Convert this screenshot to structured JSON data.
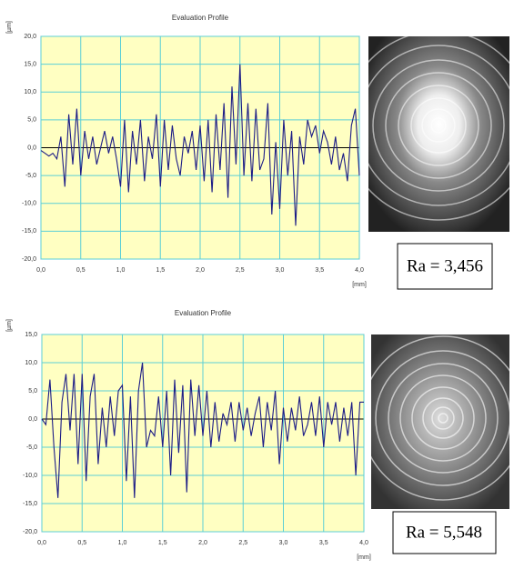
{
  "chart_data": [
    {
      "type": "line",
      "title": "Evaluation Profile",
      "ylabel": "[µm]",
      "xlabel": "[mm]",
      "annotation": "Ra = 3,456",
      "color": "#1c1c86",
      "grid": true,
      "x": [
        0,
        0.05,
        0.1,
        0.15,
        0.2,
        0.25,
        0.3,
        0.35,
        0.4,
        0.45,
        0.5,
        0.55,
        0.6,
        0.65,
        0.7,
        0.75,
        0.8,
        0.85,
        0.9,
        0.95,
        1,
        1.05,
        1.1,
        1.15,
        1.2,
        1.25,
        1.3,
        1.35,
        1.4,
        1.45,
        1.5,
        1.55,
        1.6,
        1.65,
        1.7,
        1.75,
        1.8,
        1.85,
        1.9,
        1.95,
        2,
        2.05,
        2.1,
        2.15,
        2.2,
        2.25,
        2.3,
        2.35,
        2.4,
        2.45,
        2.5,
        2.55,
        2.6,
        2.65,
        2.7,
        2.75,
        2.8,
        2.85,
        2.9,
        2.95,
        3,
        3.05,
        3.1,
        3.15,
        3.2,
        3.25,
        3.3,
        3.35,
        3.4,
        3.45,
        3.5,
        3.55,
        3.6,
        3.65,
        3.7,
        3.75,
        3.8,
        3.85,
        3.9,
        3.95,
        4
      ],
      "values": [
        -0.5,
        -1,
        -1.5,
        -1,
        -2,
        2,
        -7,
        6,
        -3,
        7,
        -5,
        3,
        -2,
        2,
        -3,
        0,
        3,
        -1,
        2,
        -2,
        -7,
        5,
        -8,
        3,
        -3,
        5,
        -6,
        2,
        -2,
        6,
        -7,
        5,
        -4,
        4,
        -2,
        -5,
        2,
        -1,
        3,
        -4,
        4,
        -6,
        5,
        -8,
        6,
        -4,
        8,
        -9,
        11,
        -3,
        15,
        -5,
        8,
        -6,
        7,
        -4,
        -2,
        8,
        -12,
        1,
        -11,
        5,
        -5,
        3,
        -14,
        2,
        -3,
        5,
        2,
        4,
        -1,
        3,
        1,
        -3,
        2,
        -4,
        -1,
        -6,
        4,
        7,
        -5
      ],
      "xlim": [
        0,
        4
      ],
      "ylim": [
        -20,
        20
      ],
      "xticks": [
        {
          "value": 0,
          "label": "0,0"
        },
        {
          "value": 0.5,
          "label": "0,5"
        },
        {
          "value": 1,
          "label": "1,0"
        },
        {
          "value": 1.5,
          "label": "1,5"
        },
        {
          "value": 2,
          "label": "2,0"
        },
        {
          "value": 2.5,
          "label": "2,5"
        },
        {
          "value": 3,
          "label": "3,0"
        },
        {
          "value": 3.5,
          "label": "3,5"
        },
        {
          "value": 4,
          "label": "4,0"
        }
      ],
      "yticks": [
        {
          "value": 20,
          "label": "20,0"
        },
        {
          "value": 15,
          "label": "15,0"
        },
        {
          "value": 10,
          "label": "10,0"
        },
        {
          "value": 5,
          "label": "5,0"
        },
        {
          "value": 0,
          "label": "0,0"
        },
        {
          "value": -5,
          "label": "-5,0"
        },
        {
          "value": -10,
          "label": "-10,0"
        },
        {
          "value": -15,
          "label": "-15,0"
        },
        {
          "value": -20,
          "label": "-20,0"
        }
      ]
    },
    {
      "type": "line",
      "title": "Evaluation Profile",
      "ylabel": "[µm]",
      "xlabel": "[mm]",
      "annotation": "Ra = 5,548",
      "color": "#1c1c86",
      "grid": true,
      "x": [
        0,
        0.05,
        0.1,
        0.15,
        0.2,
        0.25,
        0.3,
        0.35,
        0.4,
        0.45,
        0.5,
        0.55,
        0.6,
        0.65,
        0.7,
        0.75,
        0.8,
        0.85,
        0.9,
        0.95,
        1,
        1.05,
        1.1,
        1.15,
        1.2,
        1.25,
        1.3,
        1.35,
        1.4,
        1.45,
        1.5,
        1.55,
        1.6,
        1.65,
        1.7,
        1.75,
        1.8,
        1.85,
        1.9,
        1.95,
        2,
        2.05,
        2.1,
        2.15,
        2.2,
        2.25,
        2.3,
        2.35,
        2.4,
        2.45,
        2.5,
        2.55,
        2.6,
        2.65,
        2.7,
        2.75,
        2.8,
        2.85,
        2.9,
        2.95,
        3,
        3.05,
        3.1,
        3.15,
        3.2,
        3.25,
        3.3,
        3.35,
        3.4,
        3.45,
        3.5,
        3.55,
        3.6,
        3.65,
        3.7,
        3.75,
        3.8,
        3.85,
        3.9,
        3.95,
        4
      ],
      "values": [
        0,
        -1,
        7,
        -5,
        -14,
        3,
        8,
        -2,
        8,
        -8,
        8,
        -11,
        4,
        8,
        -8,
        2,
        -5,
        4,
        -3,
        5,
        6,
        -11,
        4,
        -14,
        5,
        10,
        -5,
        -2,
        -3,
        4,
        -5,
        5,
        -10,
        7,
        -6,
        6,
        -13,
        7,
        -3,
        6,
        -3,
        5,
        -5,
        3,
        -4,
        1,
        -1,
        3,
        -4,
        3,
        -2,
        2,
        -3,
        1,
        4,
        -5,
        3,
        -2,
        5,
        -8,
        2,
        -4,
        2,
        -2,
        4,
        -3,
        -1,
        3,
        -3,
        4,
        -5,
        3,
        -1,
        3,
        -4,
        2,
        -3,
        3,
        -10,
        3,
        3
      ],
      "xlim": [
        0,
        4
      ],
      "ylim": [
        -20,
        15
      ],
      "xticks": [
        {
          "value": 0,
          "label": "0,0"
        },
        {
          "value": 0.5,
          "label": "0,5"
        },
        {
          "value": 1,
          "label": "1,0"
        },
        {
          "value": 1.5,
          "label": "1,5"
        },
        {
          "value": 2,
          "label": "2,0"
        },
        {
          "value": 2.5,
          "label": "2,5"
        },
        {
          "value": 3,
          "label": "3,0"
        },
        {
          "value": 3.5,
          "label": "3,5"
        },
        {
          "value": 4,
          "label": "4,0"
        }
      ],
      "yticks": [
        {
          "value": 15,
          "label": "15,0"
        },
        {
          "value": 10,
          "label": "10,0"
        },
        {
          "value": 5,
          "label": "5,0"
        },
        {
          "value": 0,
          "label": "0,0"
        },
        {
          "value": -5,
          "label": "-5,0"
        },
        {
          "value": -10,
          "label": "-10,0"
        },
        {
          "value": -15,
          "label": "-15,0"
        },
        {
          "value": -20,
          "label": "-20,0"
        }
      ]
    }
  ]
}
